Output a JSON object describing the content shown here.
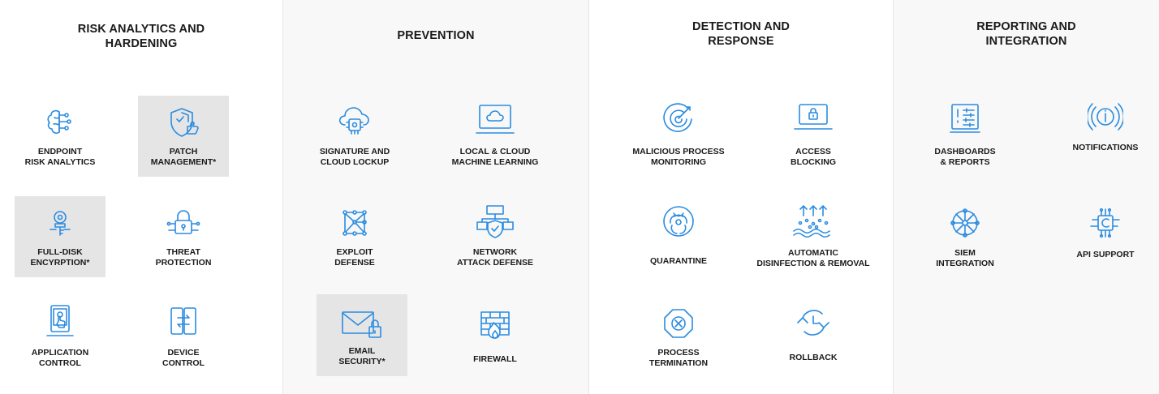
{
  "columns": [
    {
      "title": "RISK ANALYTICS  AND\nHARDENING",
      "items": [
        {
          "label": "ENDPOINT\nRISK ANALYTICS",
          "icon": "brain-circuit-icon"
        },
        {
          "label": "PATCH\nMANAGEMENT*",
          "icon": "shield-thumbs-up-icon"
        },
        {
          "label": "FULL-DISK\nENCYRPTION*",
          "icon": "key-icon"
        },
        {
          "label": "THREAT\nPROTECTION",
          "icon": "padlock-circuit-icon"
        },
        {
          "label": "APPLICATION\nCONTROL",
          "icon": "phone-touch-icon"
        },
        {
          "label": "DEVICE\nCONTROL",
          "icon": "device-transfer-icon"
        }
      ]
    },
    {
      "title": "PREVENTION",
      "items": [
        {
          "label": "SIGNATURE AND\nCLOUD LOCKUP",
          "icon": "cloud-chip-icon"
        },
        {
          "label": "LOCAL & CLOUD\nMACHINE LEARNING",
          "icon": "monitor-cloud-icon"
        },
        {
          "label": "EXPLOIT\nDEFENSE",
          "icon": "mesh-network-icon"
        },
        {
          "label": "NETWORK\nATTACK DEFENSE",
          "icon": "network-shield-icon"
        },
        {
          "label": "EMAIL\nSECURITY*",
          "icon": "email-lock-icon"
        },
        {
          "label": "FIREWALL",
          "icon": "firewall-icon"
        }
      ]
    },
    {
      "title": "DETECTION  AND\nRESPONSE",
      "items": [
        {
          "label": "MALICIOUS PROCESS\nMONITORING",
          "icon": "radar-icon"
        },
        {
          "label": "ACCESS\nBLOCKING",
          "icon": "laptop-lock-icon"
        },
        {
          "label": "QUARANTINE",
          "icon": "biohazard-icon"
        },
        {
          "label": "AUTOMATIC\nDISINFECTION & REMOVAL",
          "icon": "disinfection-icon"
        },
        {
          "label": "PROCESS\nTERMINATION",
          "icon": "octagon-x-icon"
        },
        {
          "label": "ROLLBACK",
          "icon": "rollback-icon"
        }
      ]
    },
    {
      "title": "REPORTING  AND\nINTEGRATION",
      "items": [
        {
          "label": "DASHBOARDS\n& REPORTS",
          "icon": "dashboard-icon"
        },
        {
          "label": "NOTIFICATIONS",
          "icon": "info-circle-icon"
        },
        {
          "label": "SIEM\nINTEGRATION",
          "icon": "siem-wheel-icon"
        },
        {
          "label": "API SUPPORT",
          "icon": "api-chip-icon"
        }
      ]
    }
  ],
  "colors": {
    "icon_blue": "#2b8ce0",
    "text": "#1a1a1a",
    "highlight": "#e5e5e5",
    "panel": "#f8f8f8"
  }
}
